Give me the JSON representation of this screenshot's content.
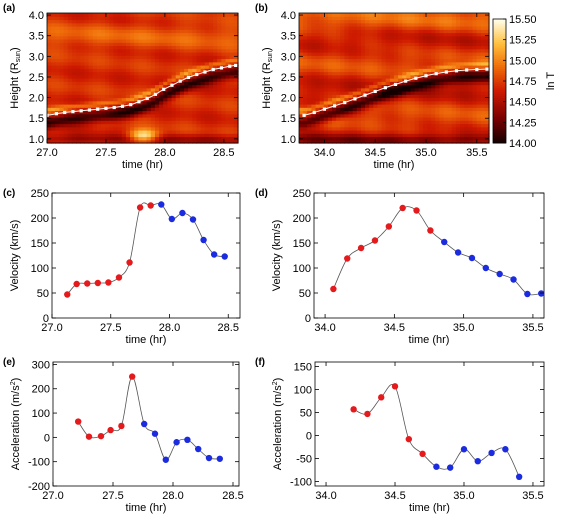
{
  "chart_data": [
    {
      "id": "a",
      "type": "heatmap",
      "panel_label": "(a)",
      "xlabel": "time (hr)",
      "ylabel_main": "Height (R",
      "ylabel_sub": "sun",
      "ylabel_close": ")",
      "xlim": [
        27.0,
        28.62
      ],
      "ylim": [
        0.9,
        4.05
      ],
      "xticks": [
        27.0,
        27.5,
        28.0,
        28.5
      ],
      "xtick_labels": [
        "27.0",
        "27.5",
        "28.0",
        "28.5"
      ],
      "yticks": [
        1.0,
        1.5,
        2.0,
        2.5,
        3.0,
        3.5,
        4.0
      ],
      "ytick_labels": [
        "1.0",
        "1.5",
        "2.0",
        "2.5",
        "3.0",
        "3.5",
        "4.0"
      ],
      "track": {
        "x": [
          27.0,
          27.08,
          27.15,
          27.22,
          27.29,
          27.36,
          27.43,
          27.5,
          27.57,
          27.64,
          27.71,
          27.78,
          27.85,
          27.92,
          27.99,
          28.06,
          28.13,
          28.2,
          28.27,
          28.34,
          28.41,
          28.48,
          28.55,
          28.6
        ],
        "y": [
          1.57,
          1.61,
          1.64,
          1.66,
          1.68,
          1.7,
          1.72,
          1.74,
          1.76,
          1.79,
          1.83,
          1.9,
          1.98,
          2.08,
          2.2,
          2.3,
          2.4,
          2.49,
          2.56,
          2.62,
          2.68,
          2.72,
          2.76,
          2.78
        ]
      }
    },
    {
      "id": "b",
      "type": "heatmap",
      "panel_label": "(b)",
      "xlabel": "time (hr)",
      "ylabel_main": "Height (R",
      "ylabel_sub": "sun",
      "ylabel_close": ")",
      "xlim": [
        33.75,
        35.62
      ],
      "ylim": [
        0.9,
        4.05
      ],
      "xticks": [
        34.0,
        34.5,
        35.0,
        35.5
      ],
      "xtick_labels": [
        "34.0",
        "34.5",
        "35.0",
        "35.5"
      ],
      "yticks": [
        1.0,
        1.5,
        2.0,
        2.5,
        3.0,
        3.5,
        4.0
      ],
      "ytick_labels": [
        "1.0",
        "1.5",
        "2.0",
        "2.5",
        "3.0",
        "3.5",
        "4.0"
      ],
      "track": {
        "x": [
          33.8,
          33.9,
          34.0,
          34.1,
          34.2,
          34.3,
          34.4,
          34.5,
          34.6,
          34.7,
          34.8,
          34.9,
          35.0,
          35.1,
          35.2,
          35.3,
          35.4,
          35.5,
          35.6
        ],
        "y": [
          1.57,
          1.64,
          1.72,
          1.8,
          1.88,
          1.97,
          2.06,
          2.15,
          2.24,
          2.32,
          2.4,
          2.47,
          2.53,
          2.58,
          2.62,
          2.65,
          2.67,
          2.68,
          2.69
        ]
      },
      "colorbar": {
        "label": "ln T",
        "range": [
          14.0,
          15.5
        ],
        "ticks": [
          14.0,
          14.25,
          14.5,
          14.75,
          15.0,
          15.25,
          15.5
        ],
        "tick_labels": [
          "14.00",
          "14.25",
          "14.50",
          "14.75",
          "15.00",
          "15.25",
          "15.50"
        ]
      }
    },
    {
      "id": "c",
      "type": "scatter",
      "panel_label": "(c)",
      "xlabel": "time (hr)",
      "ylabel": "Velocity (km/s)",
      "xlim": [
        27.0,
        28.6
      ],
      "ylim": [
        0,
        250
      ],
      "xticks": [
        27.0,
        27.5,
        28.0,
        28.5
      ],
      "xtick_labels": [
        "27.0",
        "27.5",
        "28.0",
        "28.5"
      ],
      "yticks": [
        0,
        50,
        100,
        150,
        200,
        250
      ],
      "ytick_labels": [
        "0",
        "50",
        "100",
        "150",
        "200",
        "250"
      ],
      "series": [
        {
          "color": "#e41a1c",
          "x": [
            27.13,
            27.21,
            27.3,
            27.39,
            27.48,
            27.57,
            27.66,
            27.75,
            27.84
          ],
          "y": [
            47,
            68,
            69,
            70,
            71,
            81,
            111,
            221,
            225
          ]
        },
        {
          "color": "#1b2be0",
          "x": [
            27.93,
            28.02,
            28.11,
            28.2,
            28.29,
            28.38,
            28.47
          ],
          "y": [
            227,
            198,
            210,
            197,
            156,
            127,
            123
          ]
        }
      ]
    },
    {
      "id": "d",
      "type": "scatter",
      "panel_label": "(d)",
      "xlabel": "time (hr)",
      "ylabel": "Velocity (km/s)",
      "xlim": [
        33.92,
        35.58
      ],
      "ylim": [
        0,
        250
      ],
      "xticks": [
        34.0,
        34.5,
        35.0,
        35.5
      ],
      "xtick_labels": [
        "34.0",
        "34.5",
        "35.0",
        "35.5"
      ],
      "yticks": [
        0,
        50,
        100,
        150,
        200,
        250
      ],
      "ytick_labels": [
        "0",
        "50",
        "100",
        "150",
        "200",
        "250"
      ],
      "series": [
        {
          "color": "#e41a1c",
          "x": [
            34.06,
            34.16,
            34.26,
            34.36,
            34.46,
            34.56,
            34.66,
            34.76
          ],
          "y": [
            58,
            119,
            140,
            155,
            183,
            220,
            215,
            175
          ]
        },
        {
          "color": "#1b2be0",
          "x": [
            34.86,
            34.96,
            35.06,
            35.16,
            35.26,
            35.36,
            35.46,
            35.56
          ],
          "y": [
            152,
            131,
            120,
            100,
            88,
            77,
            48,
            49
          ]
        }
      ]
    },
    {
      "id": "e",
      "type": "scatter",
      "panel_label": "(e)",
      "xlabel": "time (hr)",
      "ylabel": "Acceleration (m/s",
      "ylabel_sup": "2",
      "ylabel_close": ")",
      "xlim": [
        27.0,
        28.55
      ],
      "ylim": [
        -200,
        310
      ],
      "xticks": [
        27.0,
        27.5,
        28.0,
        28.5
      ],
      "xtick_labels": [
        "27.0",
        "27.5",
        "28.0",
        "28.5"
      ],
      "yticks": [
        -200,
        -100,
        0,
        100,
        200,
        300
      ],
      "ytick_labels": [
        "-200",
        "-100",
        "0",
        "100",
        "200",
        "300"
      ],
      "series": [
        {
          "color": "#e41a1c",
          "x": [
            27.21,
            27.3,
            27.4,
            27.48,
            27.57,
            27.66
          ],
          "y": [
            65,
            3,
            5,
            30,
            47,
            250
          ]
        },
        {
          "color": "#1b2be0",
          "x": [
            27.76,
            27.85,
            27.94,
            28.03,
            28.12,
            28.21,
            28.3,
            28.39
          ],
          "y": [
            55,
            15,
            -92,
            -20,
            -10,
            -48,
            -85,
            -88
          ]
        }
      ]
    },
    {
      "id": "f",
      "type": "scatter",
      "panel_label": "(f)",
      "xlabel": "time (hr)",
      "ylabel": "Acceleration (m/s",
      "ylabel_sup": "2",
      "ylabel_close": ")",
      "xlim": [
        33.92,
        35.58
      ],
      "ylim": [
        -110,
        160
      ],
      "xticks": [
        34.0,
        34.5,
        35.0,
        35.5
      ],
      "xtick_labels": [
        "34.0",
        "34.5",
        "35.0",
        "35.5"
      ],
      "yticks": [
        -100,
        -50,
        0,
        50,
        100,
        150
      ],
      "ytick_labels": [
        "-100",
        "-50",
        "0",
        "50",
        "100",
        "150"
      ],
      "series": [
        {
          "color": "#e41a1c",
          "x": [
            34.2,
            34.3,
            34.4,
            34.5,
            34.6,
            34.7
          ],
          "y": [
            57,
            47,
            83,
            107,
            -8,
            -40
          ]
        },
        {
          "color": "#1b2be0",
          "x": [
            34.8,
            34.9,
            35.0,
            35.1,
            35.2,
            35.3,
            35.4
          ],
          "y": [
            -68,
            -70,
            -30,
            -56,
            -38,
            -30,
            -90
          ]
        }
      ]
    }
  ]
}
